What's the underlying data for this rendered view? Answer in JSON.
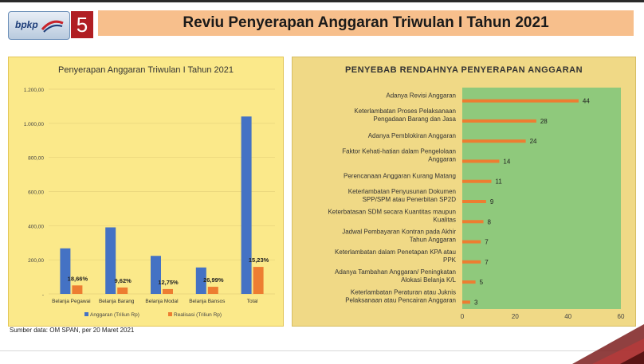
{
  "header": {
    "logo_text": "bpkp",
    "section_number": "5",
    "title": "Reviu Penyerapan Anggaran Triwulan I Tahun 2021"
  },
  "footer": {
    "source": "Sumber data: OM SPAN, per 20 Maret 2021"
  },
  "colors": {
    "title_bar": "#f7bf8c",
    "left_panel": "#fbe98a",
    "right_panel": "#f0d986",
    "plot_green": "#8fc97c",
    "series_blue": "#4472c4",
    "series_orange": "#ed7d31",
    "badge_red": "#b01e23"
  },
  "chart_data": [
    {
      "type": "bar",
      "title": "Penyerapan Anggaran Triwulan I Tahun 2021",
      "categories": [
        "Belanja Pegawai",
        "Belanja Barang",
        "Belanja Modal",
        "Belanja Bansos",
        "Total"
      ],
      "series": [
        {
          "name": "Anggaran (Triliun Rp)",
          "values": [
            267,
            390,
            223,
            155,
            1040
          ]
        },
        {
          "name": "Realisasi (Triliun Rp)",
          "values": [
            49.8,
            37.5,
            28.4,
            41.8,
            158.4
          ]
        }
      ],
      "data_labels": [
        "18,66%",
        "9,62%",
        "12,75%",
        "26,99%",
        "15,23%"
      ],
      "ylim": [
        0,
        1200
      ],
      "yticks": [
        "-",
        "200,00",
        "400,00",
        "600,00",
        "800,00",
        "1.000,00",
        "1.200,00"
      ],
      "grid": true,
      "legend": "bottom"
    },
    {
      "type": "bar",
      "orientation": "horizontal",
      "title": "PENYEBAB RENDAHNYA PENYERAPAN ANGGARAN",
      "categories": [
        [
          "Adanya Revisi Anggaran"
        ],
        [
          "Keterlambatan Proses Pelaksanaan",
          "Pengadaan Barang dan Jasa"
        ],
        [
          "Adanya Pemblokiran Anggaran"
        ],
        [
          "Faktor Kehati-hatian dalam Pengelolaan",
          "Anggaran"
        ],
        [
          "Perencanaan Anggaran Kurang Matang"
        ],
        [
          "Keterlambatan Penyusunan Dokumen",
          "SPP/SPM atau Penerbitan SP2D"
        ],
        [
          "Keterbatasan SDM secara Kuantitas maupun",
          "Kualitas"
        ],
        [
          "Jadwal Pembayaran Kontran pada Akhir",
          "Tahun Anggaran"
        ],
        [
          "Keterlambatan dalam Penetapan KPA atau",
          "PPK"
        ],
        [
          "Adanya Tambahan Anggaran/ Peningkatan",
          "Alokasi Belanja K/L"
        ],
        [
          "Keterlambatan Peraturan atau Juknis",
          "Pelaksanaan atau Pencairan Anggaran"
        ]
      ],
      "values": [
        44,
        28,
        24,
        14,
        11,
        9,
        8,
        7,
        7,
        5,
        3
      ],
      "xlim": [
        0,
        60
      ],
      "xticks": [
        "0",
        "20",
        "40",
        "60"
      ],
      "grid": false
    }
  ]
}
